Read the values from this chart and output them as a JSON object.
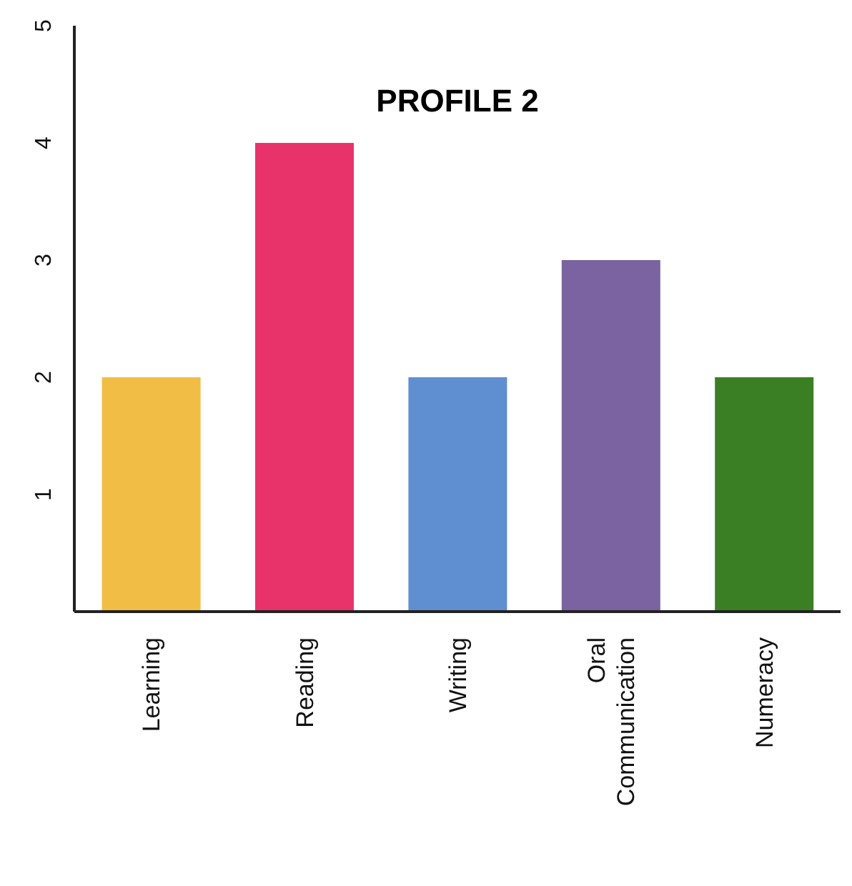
{
  "chart_data": {
    "type": "bar",
    "title": "PROFILE 2",
    "categories": [
      "Learning",
      "Reading",
      "Writing",
      "Oral Communication",
      "Numeracy"
    ],
    "values": [
      2,
      4,
      2,
      3,
      2
    ],
    "colors": [
      "#f2bd45",
      "#e8336a",
      "#5f8fd0",
      "#7b62a0",
      "#3a7f23"
    ],
    "ylim": [
      0,
      5
    ],
    "yticks": [
      1,
      2,
      3,
      4,
      5
    ],
    "grid": false,
    "legend": false
  }
}
